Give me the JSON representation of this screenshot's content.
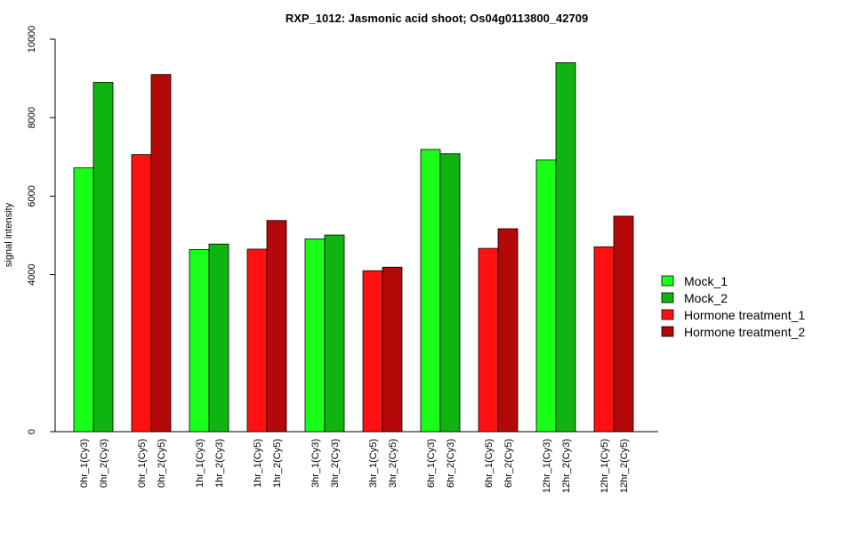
{
  "chart_data": {
    "type": "bar",
    "title": "RXP_1012: Jasmonic acid shoot; Os04g0113800_42709",
    "xlabel": "",
    "ylabel": "signal intensity",
    "ylim": [
      0,
      10000
    ],
    "y_ticks": [
      0,
      4000,
      6000,
      8000,
      10000
    ],
    "y_tick_labels": [
      "0",
      "4000",
      "6000",
      "8000",
      "10000"
    ],
    "grid": false,
    "legend_position": "right",
    "series": [
      {
        "name": "Mock_1",
        "color": "#19FF19"
      },
      {
        "name": "Mock_2",
        "color": "#10B410"
      },
      {
        "name": "Hormone treatment_1",
        "color": "#FF1111"
      },
      {
        "name": "Hormone treatment_2",
        "color": "#B50808"
      }
    ],
    "groups": [
      {
        "bars": [
          {
            "label": "0hr_1(Cy3)",
            "value": 6720,
            "series": 0
          },
          {
            "label": "0hr_2(Cy3)",
            "value": 8900,
            "series": 1
          }
        ]
      },
      {
        "bars": [
          {
            "label": "0hr_1(Cy5)",
            "value": 7060,
            "series": 2
          },
          {
            "label": "0hr_2(Cy5)",
            "value": 9100,
            "series": 3
          }
        ]
      },
      {
        "bars": [
          {
            "label": "1hr_1(Cy3)",
            "value": 4640,
            "series": 0
          },
          {
            "label": "1hr_2(Cy3)",
            "value": 4780,
            "series": 1
          }
        ]
      },
      {
        "bars": [
          {
            "label": "1hr_1(Cy5)",
            "value": 4650,
            "series": 2
          },
          {
            "label": "1hr_2(Cy5)",
            "value": 5380,
            "series": 3
          }
        ]
      },
      {
        "bars": [
          {
            "label": "3hr_1(Cy3)",
            "value": 4910,
            "series": 0
          },
          {
            "label": "3hr_2(Cy3)",
            "value": 5010,
            "series": 1
          }
        ]
      },
      {
        "bars": [
          {
            "label": "3hr_1(Cy5)",
            "value": 4100,
            "series": 2
          },
          {
            "label": "3hr_2(Cy5)",
            "value": 4190,
            "series": 3
          }
        ]
      },
      {
        "bars": [
          {
            "label": "6hr_1(Cy3)",
            "value": 7190,
            "series": 0
          },
          {
            "label": "6hr_2(Cy3)",
            "value": 7080,
            "series": 1
          }
        ]
      },
      {
        "bars": [
          {
            "label": "6hr_1(Cy5)",
            "value": 4670,
            "series": 2
          },
          {
            "label": "6hr_2(Cy5)",
            "value": 5170,
            "series": 3
          }
        ]
      },
      {
        "bars": [
          {
            "label": "12hr_1(Cy3)",
            "value": 6920,
            "series": 0
          },
          {
            "label": "12hr_2(Cy3)",
            "value": 9400,
            "series": 1
          }
        ]
      },
      {
        "bars": [
          {
            "label": "12hr_1(Cy5)",
            "value": 4710,
            "series": 2
          },
          {
            "label": "12hr_2(Cy5)",
            "value": 5490,
            "series": 3
          }
        ]
      }
    ]
  }
}
